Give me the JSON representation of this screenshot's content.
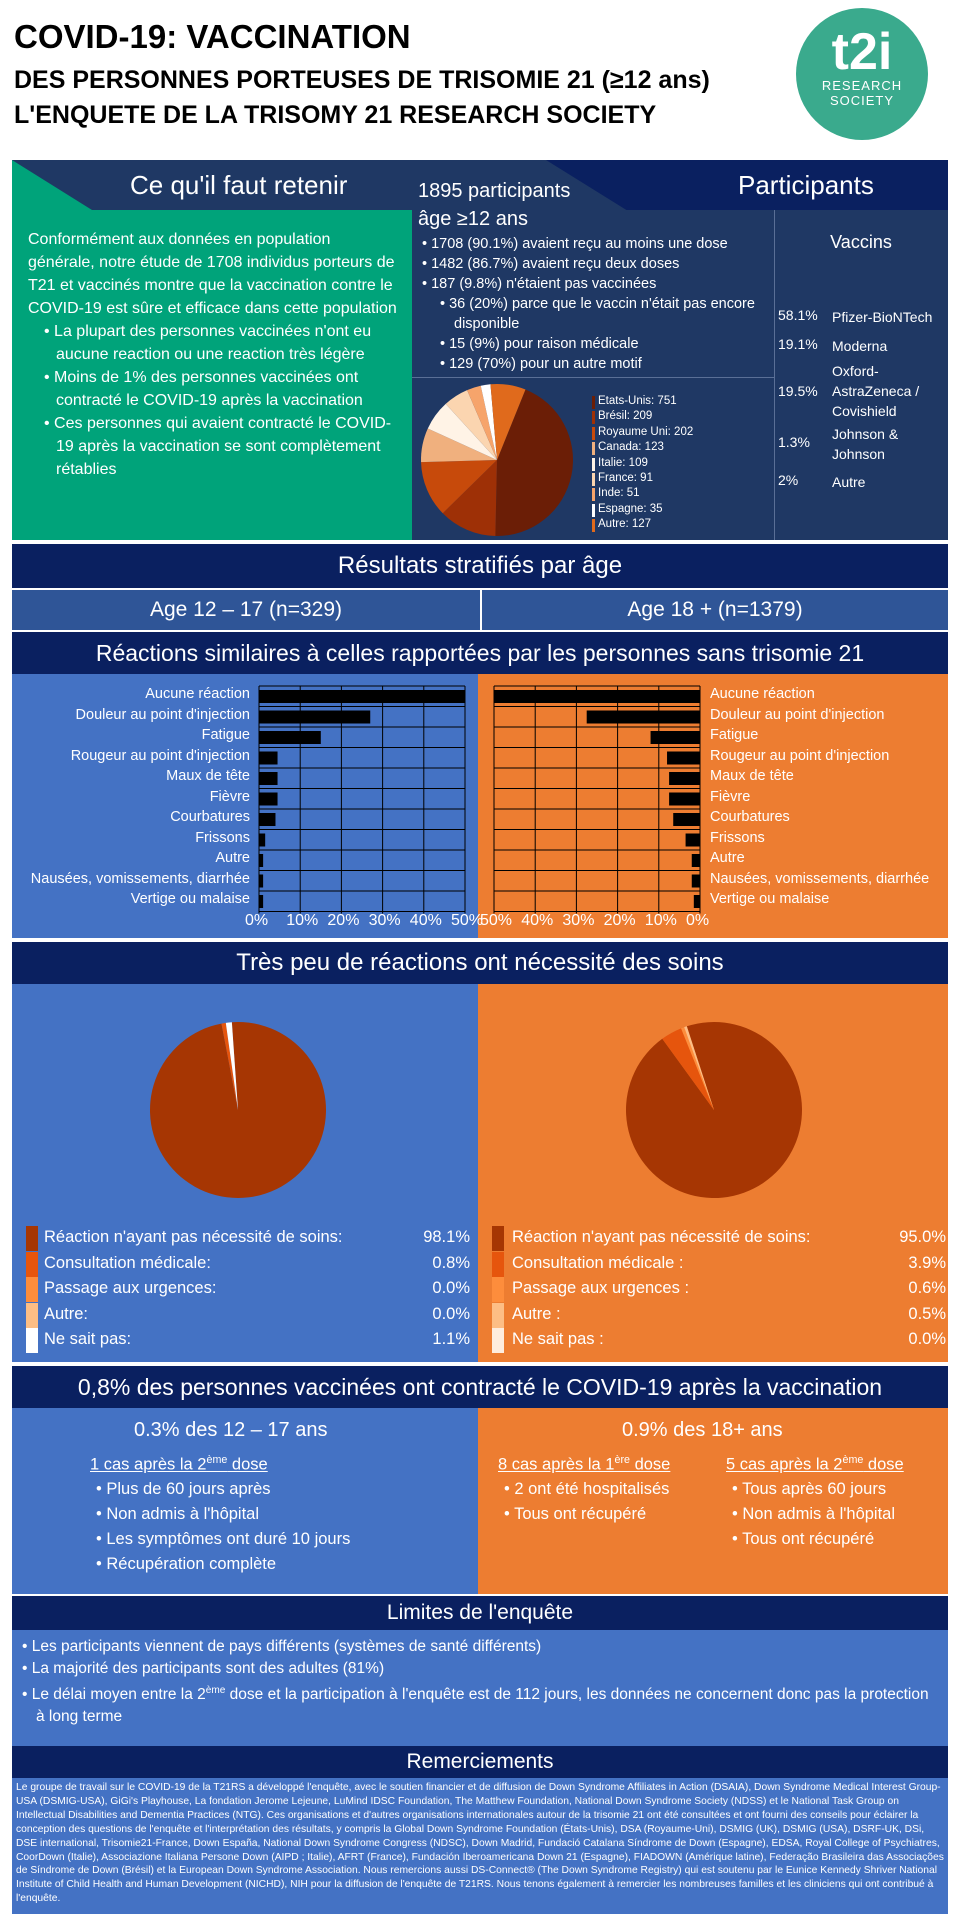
{
  "header": {
    "title1": "COVID-19: VACCINATION",
    "title2": "DES PERSONNES PORTEUSES DE TRISOMIE 21 (≥12 ans)",
    "title3": "L'ENQUETE DE LA TRISOMY 21 RESEARCH SOCIETY",
    "logo_big": "t2i",
    "logo_line1": "RESEARCH",
    "logo_line2": "SOCIETY"
  },
  "retenir": {
    "title": "Ce qu'il faut retenir",
    "intro": "Conformément aux données en population générale, notre étude de 1708 individus porteurs de T21 et vaccinés montre que la vaccination contre le COVID-19 est sûre et efficace dans cette population",
    "bullets": [
      "La plupart des personnes vaccinées n'ont eu aucune reaction ou une reaction très légère",
      "Moins de 1% des personnes vaccinées ont contracté le COVID-19 après la vaccination",
      "Ces personnes qui avaient contracté le COVID-19 après la vaccination se sont complètement rétablies"
    ]
  },
  "participants": {
    "title": "Participants",
    "count": "1895 participants",
    "age": "âge ≥12 ans",
    "items": [
      "1708 (90.1%) avaient reçu au moins une dose",
      "1482 (86.7%) avaient reçu deux doses",
      "187 (9.8%) n'étaient pas vaccinées"
    ],
    "subitems": [
      "36 (20%) parce que le vaccin n'était pas encore disponible",
      "15 (9%) pour raison médicale",
      "129 (70%) pour un autre motif"
    ],
    "countries": [
      {
        "label": "Etats-Unis: 751",
        "value": 751,
        "color": "#6b1e06"
      },
      {
        "label": "Brésil: 209",
        "value": 209,
        "color": "#9e3006"
      },
      {
        "label": "Royaume Uni: 202",
        "value": 202,
        "color": "#c74a0b"
      },
      {
        "label": "Canada: 123",
        "value": 123,
        "color": "#f0b07e"
      },
      {
        "label": "Italie: 109",
        "value": 109,
        "color": "#fff3e6"
      },
      {
        "label": "France: 91",
        "value": 91,
        "color": "#fbd5b0"
      },
      {
        "label": "Inde: 51",
        "value": 51,
        "color": "#f6a46b"
      },
      {
        "label": "Espagne: 35",
        "value": 35,
        "color": "#ffffff"
      },
      {
        "label": "Autre: 127",
        "value": 127,
        "color": "#e06a1c"
      }
    ]
  },
  "vaccins": {
    "title": "Vaccins",
    "rows": [
      {
        "pct": "58.1%",
        "name": "Pfizer-BioNTech"
      },
      {
        "pct": "19.1%",
        "name": "Moderna"
      },
      {
        "pct": "19.5%",
        "name": "Oxford-AstraZeneca / Covishield"
      },
      {
        "pct": "1.3%",
        "name": "Johnson & Johnson"
      },
      {
        "pct": "2%",
        "name": "Autre"
      }
    ]
  },
  "stratified": {
    "title": "Résultats stratifiés par âge",
    "left": "Age 12 – 17 (n=329)",
    "right": "Age 18 + (n=1379)"
  },
  "reactions": {
    "title": "Réactions similaires à celles rapportées par les personnes sans trisomie 21",
    "labels": [
      "Aucune réaction",
      "Douleur au point d'injection",
      "Fatigue",
      "Rougeur au point d'injection",
      "Maux de tête",
      "Fièvre",
      "Courbatures",
      "Frissons",
      "Autre",
      "Nausées, vomissements, diarrhée",
      "Vertige ou malaise"
    ],
    "left_ticks": [
      "0%",
      "10%",
      "20%",
      "30%",
      "40%",
      "50%"
    ],
    "right_ticks": [
      "50%",
      "40%",
      "30%",
      "20%",
      "10%",
      "0%"
    ]
  },
  "chart_data": [
    {
      "type": "bar",
      "categories": [
        "Aucune réaction",
        "Douleur au point d'injection",
        "Fatigue",
        "Rougeur au point d'injection",
        "Maux de tête",
        "Fièvre",
        "Courbatures",
        "Frissons",
        "Autre",
        "Nausées, vomissements, diarrhée",
        "Vertige ou malaise"
      ],
      "values": [
        50,
        27,
        15,
        4.5,
        4.5,
        4.5,
        4,
        1.5,
        1,
        1,
        1
      ],
      "xlim": [
        0,
        50
      ],
      "orientation": "horizontal"
    },
    {
      "type": "bar",
      "categories": [
        "Aucune réaction",
        "Douleur au point d'injection",
        "Fatigue",
        "Rougeur au point d'injection",
        "Maux de tête",
        "Fièvre",
        "Courbatures",
        "Frissons",
        "Autre",
        "Nausées, vomissements, diarrhée",
        "Vertige ou malaise"
      ],
      "values": [
        50,
        27.5,
        12,
        8,
        7.5,
        7.5,
        6.5,
        3.5,
        2,
        2,
        1.5
      ],
      "xlim": [
        50,
        0
      ],
      "orientation": "horizontal"
    },
    {
      "type": "pie",
      "categories": [
        "Réaction n'ayant pas nécessité de soins:",
        "Consultation médicale:",
        "Passage aux urgences:",
        "Autre:",
        "Ne sait pas:"
      ],
      "values": [
        98.1,
        0.8,
        0.0,
        0.0,
        1.1
      ],
      "labels": [
        "98.1%",
        "0.8%",
        "0.0%",
        "0.0%",
        "1.1%"
      ],
      "colors": [
        "#a63603",
        "#e6550d",
        "#fd8d3c",
        "#fdbe85",
        "#ffffff"
      ]
    },
    {
      "type": "pie",
      "categories": [
        "Réaction n'ayant pas nécessité de soins:",
        "Consultation médicale :",
        "Passage aux urgences :",
        "Autre :",
        "Ne sait pas :"
      ],
      "values": [
        95.0,
        3.9,
        0.6,
        0.5,
        0.0
      ],
      "labels": [
        "95.0%",
        "3.9%",
        "0.6%",
        "0.5%",
        "0.0%"
      ],
      "colors": [
        "#a63603",
        "#e6550d",
        "#fd8d3c",
        "#fdbe85",
        "#feedde"
      ]
    }
  ],
  "care": {
    "title": "Très peu de réactions ont nécessité des soins"
  },
  "covid": {
    "title": "0,8% des personnes vaccinées ont contracté le COVID-19 après la vaccination",
    "left_title": "0.3% des 12 – 17 ans",
    "left_sub_a": "1 cas après la 2",
    "left_sub_sup": "ème",
    "left_sub_b": " dose",
    "left_items": [
      "Plus de 60 jours après",
      "Non admis à l'hôpital",
      "Les symptômes ont duré 10 jours",
      "Récupération complète"
    ],
    "right_title": "0.9% des 18+ ans",
    "r1_sub_a": "8 cas après la 1",
    "r1_sub_sup": "ère",
    "r1_sub_b": " dose",
    "r1_items": [
      "2 ont été hospitalisés",
      "Tous ont récupéré"
    ],
    "r2_sub_a": "5 cas après la 2",
    "r2_sub_sup": "ème",
    "r2_sub_b": " dose",
    "r2_items": [
      "Tous après 60 jours",
      "Non admis à l'hôpital",
      "Tous ont récupéré"
    ]
  },
  "limites": {
    "title": "Limites de l'enquête",
    "item1": "Les participants viennent de pays différents (systèmes de santé différents)",
    "item2": "La majorité des participants sont des adultes (81%)",
    "item3_a": "Le délai moyen entre la 2",
    "item3_sup": "ème",
    "item3_b": " dose et la participation à l'enquête est de 112 jours, les données ne concernent donc pas la protection à long terme"
  },
  "remerciements": {
    "title": "Remerciements",
    "text": "Le groupe de travail sur le COVID-19 de la T21RS a développé l'enquête, avec le soutien financier et de diffusion de Down Syndrome Affiliates in Action (DSAIA), Down Syndrome Medical Interest Group-USA (DSMIG-USA), GiGi's Playhouse, La fondation Jerome Lejeune, LuMind IDSC Foundation, The Matthew Foundation, National Down Syndrome Society (NDSS) et le National Task Group on Intellectual Disabilities and Dementia Practices (NTG). Ces organisations et d'autres organisations internationales autour de la trisomie 21 ont été consultées et ont fourni des conseils pour éclairer la conception des questions de l'enquête et l'interprétation des résultats, y compris la Global Down Syndrome Foundation (États-Unis), DSA (Royaume-Uni), DSMIG (UK), DSMIG (USA), DSRF-UK, DSi, DSE international, Trisomie21-France, Down España, National Down Syndrome Congress (NDSC), Down Madrid, Fundació Catalana Síndrome de Down (Espagne), EDSA, Royal College of Psychiatres, CoorDown (Italie), Associazione Italiana Persone Down (AIPD ; Italie), AFRT (France), Fundación Iberoamericana Down 21 (Espagne), FIADOWN (Amérique latine), Federação Brasileira das Associações de Síndrome de Down (Brésil) et la European Down Syndrome Association. Nous remercions aussi DS-Connect® (The Down Syndrome Registry) qui est soutenu par le Eunice Kennedy Shriver National Institute of Child Health and Human Development (NICHD), NIH pour la diffusion de l'enquête de T21RS. Nous tenons également à remercier les nombreuses familles et les cliniciens qui ont contribué à l'enquête."
  }
}
